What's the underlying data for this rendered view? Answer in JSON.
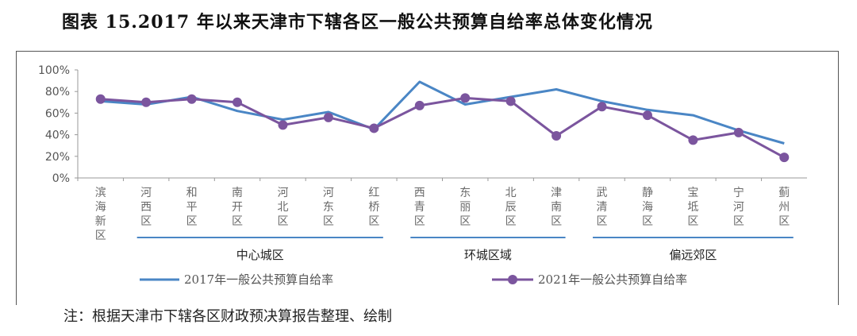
{
  "figure_title": "图表 15.2017 年以来天津市下辖各区一般公共预算自给率总体变化情况",
  "note": "注：根据天津市下辖各区财政预决算报告整理、绘制",
  "colors": {
    "series_2017": "#4a86c5",
    "series_2021": "#7b559e",
    "group_line": "#4a86c5",
    "axis": "#999999"
  },
  "chart_data": {
    "type": "line",
    "title": "",
    "xlabel": "",
    "ylabel": "",
    "ylim": [
      0,
      100
    ],
    "yticks": [
      "0%",
      "20%",
      "40%",
      "60%",
      "80%",
      "100%"
    ],
    "categories": [
      "滨海新区",
      "河西区",
      "和平区",
      "南开区",
      "河北区",
      "河东区",
      "红桥区",
      "西青区",
      "东丽区",
      "北辰区",
      "津南区",
      "武清区",
      "静海区",
      "宝坻区",
      "宁河区",
      "蓟州区"
    ],
    "series": [
      {
        "name": "2017年一般公共预算自给率",
        "marker": "none",
        "values": [
          71,
          68,
          75,
          62,
          54,
          61,
          45,
          89,
          68,
          75,
          82,
          71,
          63,
          58,
          44,
          32
        ]
      },
      {
        "name": "2021年一般公共预算自给率",
        "marker": "circle",
        "values": [
          73,
          70,
          73,
          70,
          49,
          56,
          46,
          67,
          74,
          71,
          39,
          66,
          58,
          35,
          42,
          19
        ]
      }
    ],
    "groups": [
      {
        "label": "中心城区",
        "from": 1,
        "to": 6
      },
      {
        "label": "环城区域",
        "from": 7,
        "to": 10
      },
      {
        "label": "偏远郊区",
        "from": 11,
        "to": 15
      }
    ],
    "grid": false,
    "legend_position": "bottom"
  }
}
